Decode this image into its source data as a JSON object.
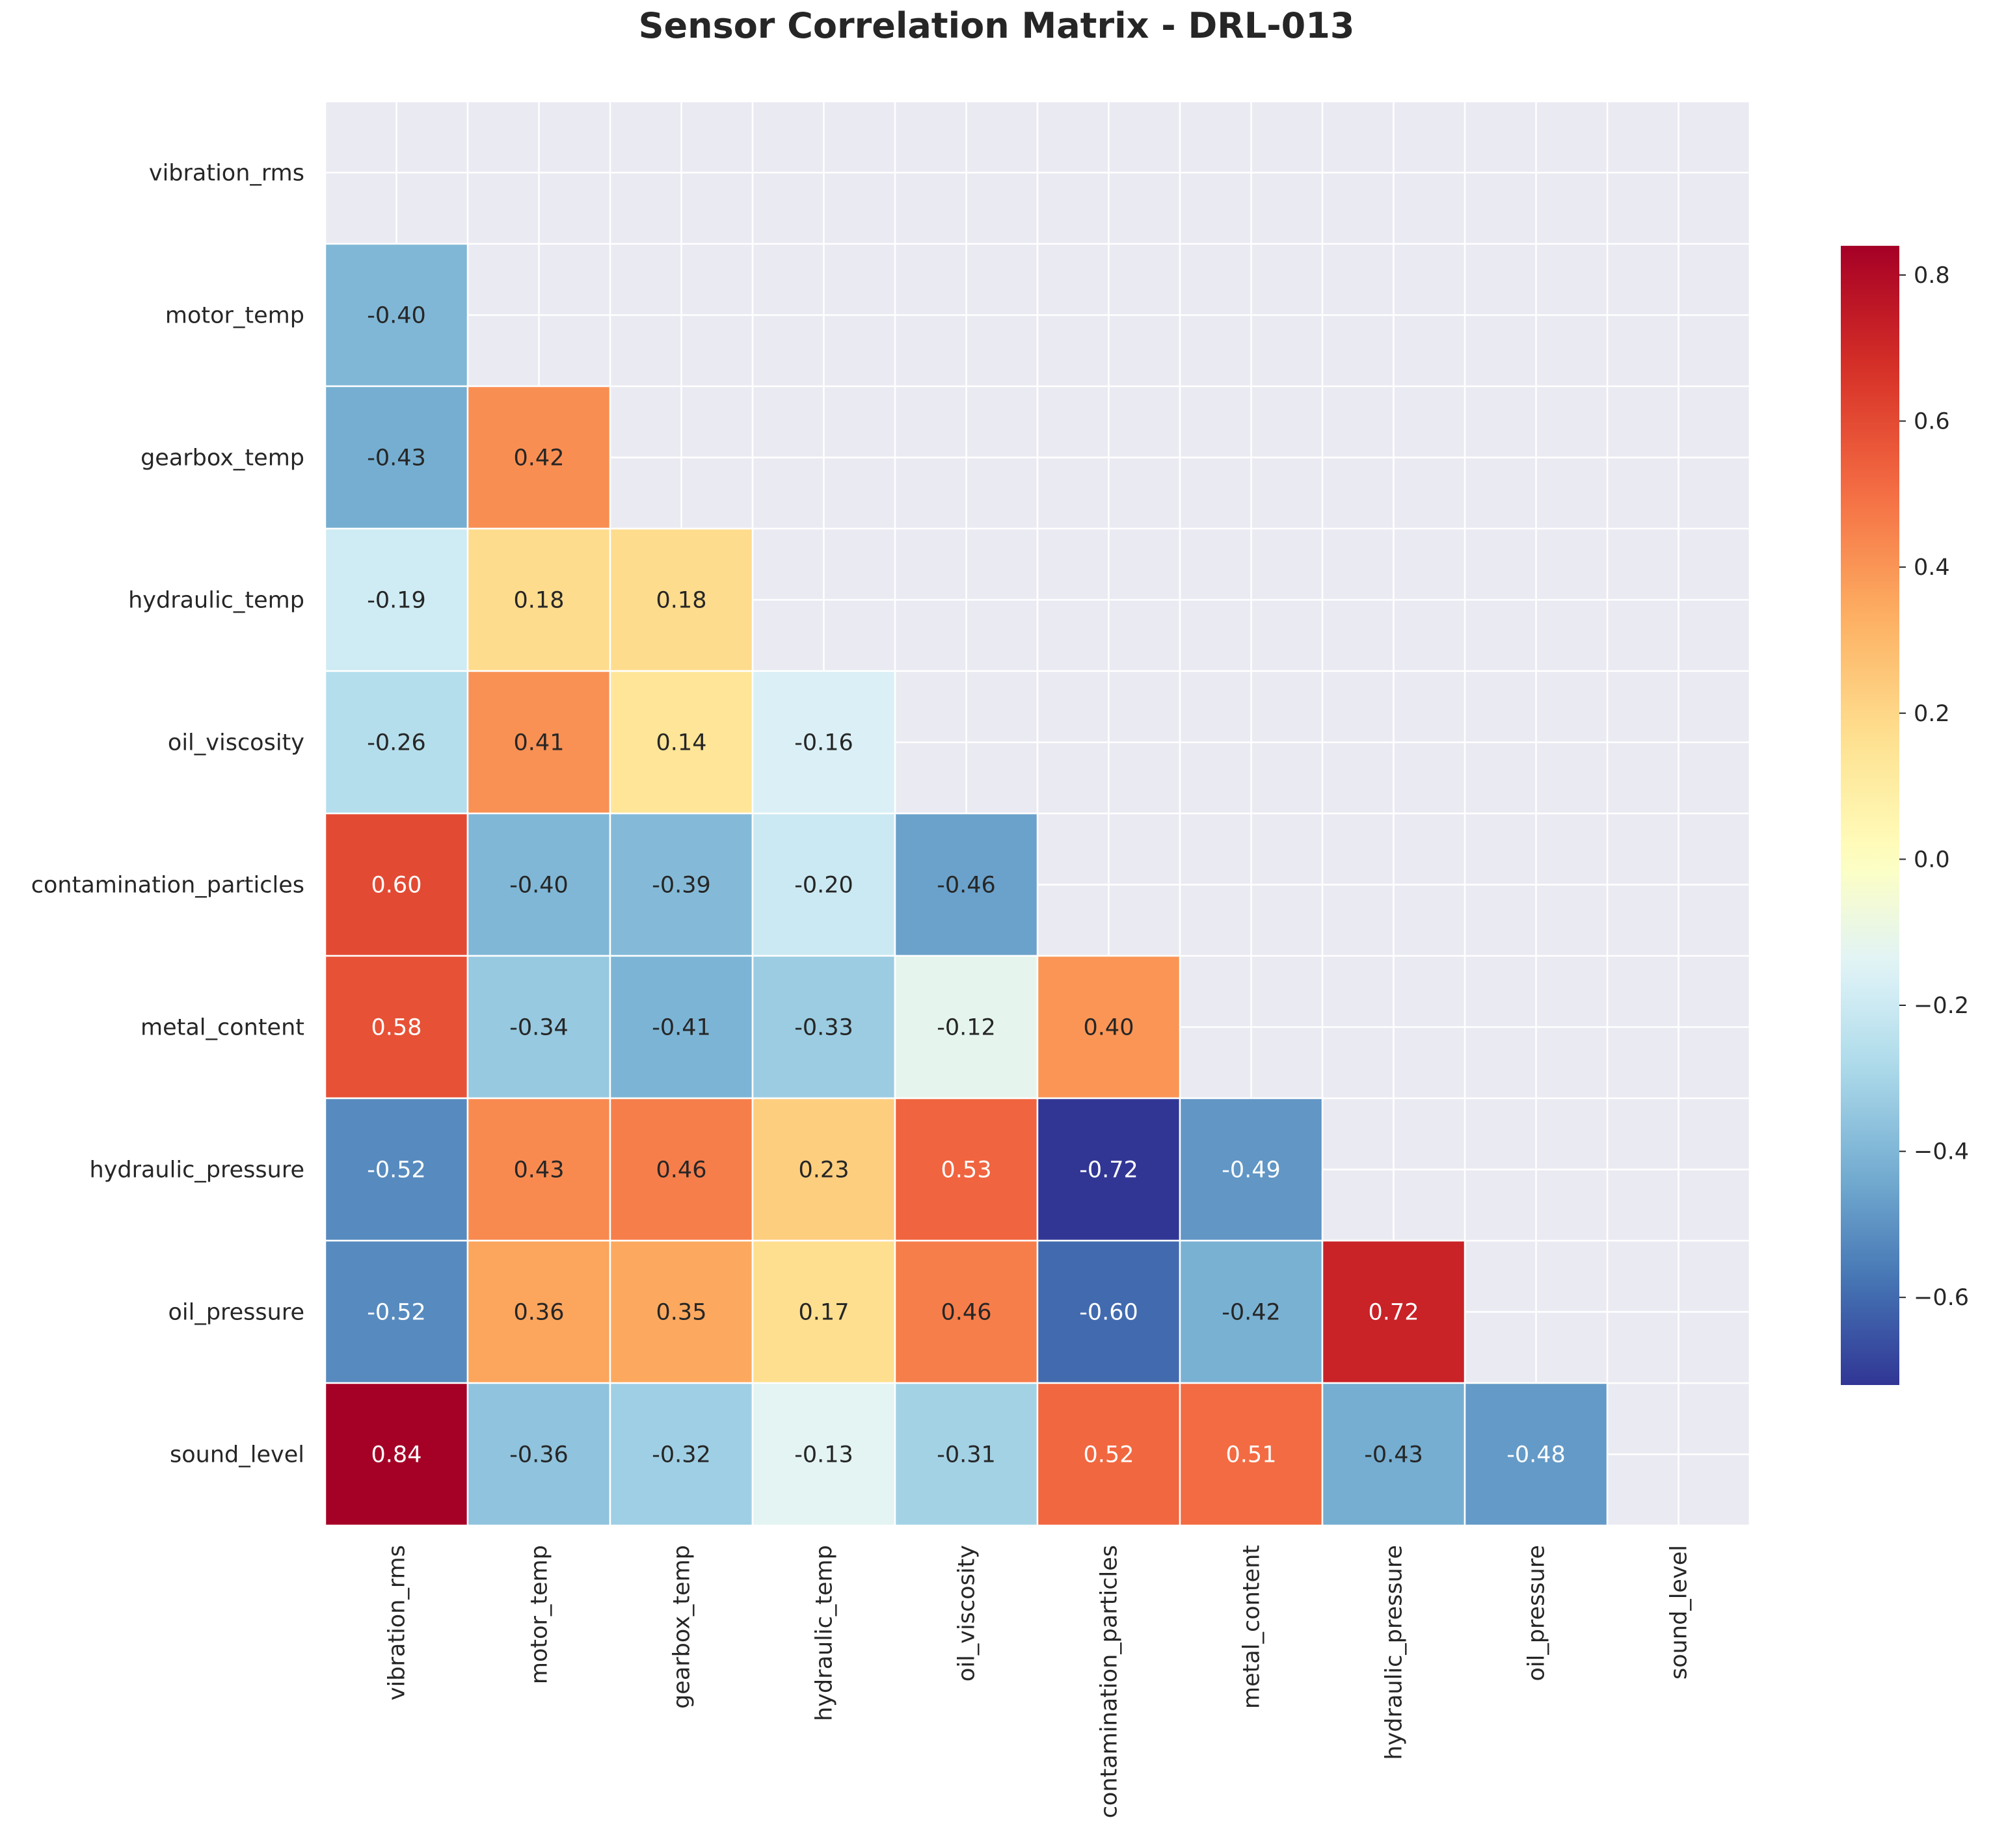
{
  "chart_data": {
    "type": "heatmap",
    "title": "Sensor Correlation Matrix - DRL-013",
    "variables": [
      "vibration_rms",
      "motor_temp",
      "gearbox_temp",
      "hydraulic_temp",
      "oil_viscosity",
      "contamination_particles",
      "metal_content",
      "hydraulic_pressure",
      "oil_pressure",
      "sound_level"
    ],
    "mask": "upper-triangle-including-diagonal",
    "values": [
      [
        null,
        null,
        null,
        null,
        null,
        null,
        null,
        null,
        null,
        null
      ],
      [
        -0.4,
        null,
        null,
        null,
        null,
        null,
        null,
        null,
        null,
        null
      ],
      [
        -0.43,
        0.42,
        null,
        null,
        null,
        null,
        null,
        null,
        null,
        null
      ],
      [
        -0.19,
        0.18,
        0.18,
        null,
        null,
        null,
        null,
        null,
        null,
        null
      ],
      [
        -0.26,
        0.41,
        0.14,
        -0.16,
        null,
        null,
        null,
        null,
        null,
        null
      ],
      [
        0.6,
        -0.4,
        -0.39,
        -0.2,
        -0.46,
        null,
        null,
        null,
        null,
        null
      ],
      [
        0.58,
        -0.34,
        -0.41,
        -0.33,
        -0.12,
        0.4,
        null,
        null,
        null,
        null
      ],
      [
        -0.52,
        0.43,
        0.46,
        0.23,
        0.53,
        -0.72,
        -0.49,
        null,
        null,
        null
      ],
      [
        -0.52,
        0.36,
        0.35,
        0.17,
        0.46,
        -0.6,
        -0.42,
        0.72,
        null,
        null
      ],
      [
        0.84,
        -0.36,
        -0.32,
        -0.13,
        -0.31,
        0.52,
        0.51,
        -0.43,
        -0.48,
        null
      ]
    ],
    "value_format": "0.00",
    "colormap": "RdYlBu_r",
    "color_range": [
      -0.72,
      0.84
    ],
    "colorbar": {
      "position": "right",
      "ticks": [
        -0.6,
        -0.4,
        -0.2,
        0.0,
        0.2,
        0.4,
        0.6,
        0.8
      ],
      "tick_labels": [
        "−0.6",
        "−0.4",
        "−0.2",
        "0.0",
        "0.2",
        "0.4",
        "0.6",
        "0.8"
      ]
    },
    "grid": true,
    "colors": {
      "plot_background": "#eaeaf2",
      "cell_border": "#ffffff",
      "grid_line": "#ffffff",
      "text_dark": "#262626",
      "text_light": "#ffffff"
    }
  }
}
